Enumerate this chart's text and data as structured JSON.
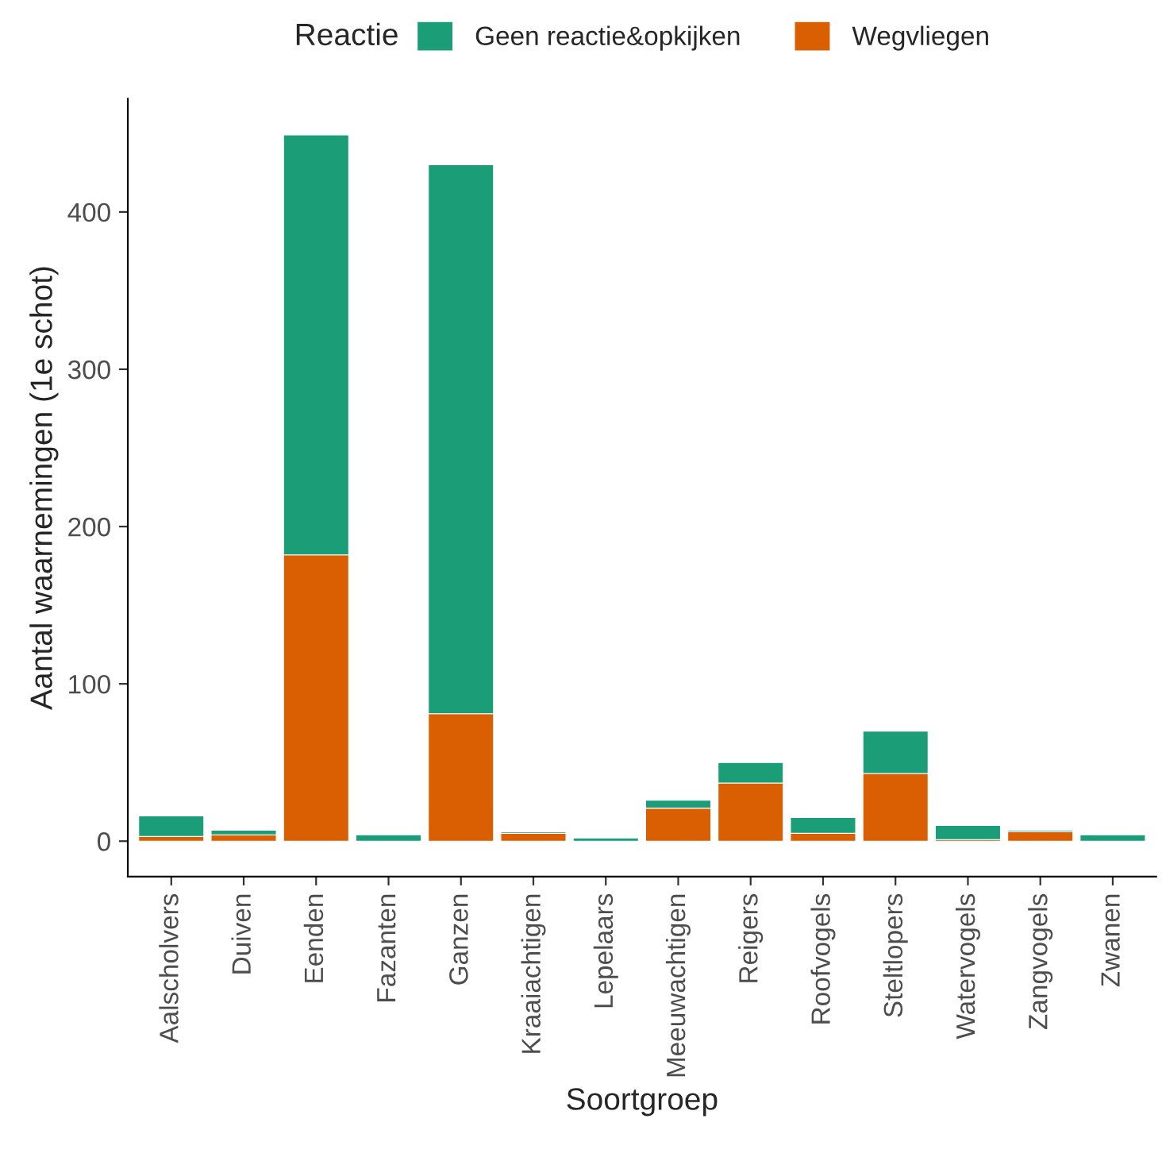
{
  "chart_data": {
    "type": "bar",
    "stacked": true,
    "xlabel": "Soortgroep",
    "ylabel": "Aantal waarnemingen (1e schot)",
    "legend_title": "Reactie",
    "legend": "top",
    "categories": [
      "Aalscholvers",
      "Duiven",
      "Eenden",
      "Fazanten",
      "Ganzen",
      "Kraaiachtigen",
      "Lepelaars",
      "Meeuwachtigen",
      "Reigers",
      "Roofvogels",
      "Steltlopers",
      "Watervogels",
      "Zangvogels",
      "Zwanen"
    ],
    "series": [
      {
        "name": "Wegvliegen",
        "color": "#d95f02",
        "values": [
          3,
          4,
          182,
          0,
          81,
          5,
          0,
          21,
          37,
          5,
          43,
          1,
          6,
          0
        ]
      },
      {
        "name": "Geen reactie&opkijken",
        "color": "#1b9e77",
        "values": [
          13,
          3,
          267,
          4,
          349,
          1,
          2,
          5,
          13,
          10,
          27,
          9,
          1,
          4
        ]
      }
    ],
    "ylim": [
      -22.5,
      472
    ],
    "yticks": [
      0,
      100,
      200,
      300,
      400
    ],
    "grid": false
  }
}
